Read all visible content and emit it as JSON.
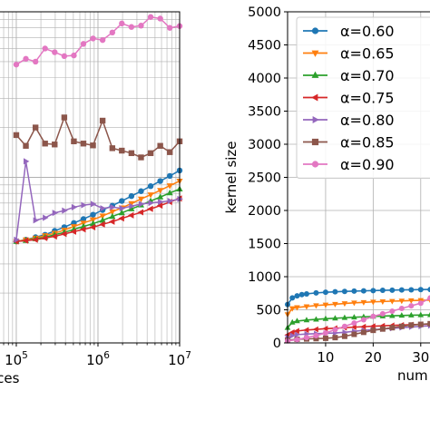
{
  "chart_data": [
    {
      "type": "line",
      "xscale": "log",
      "yscale": "log",
      "xlim": [
        60000,
        10000000
      ],
      "ylim": [
        1,
        100
      ],
      "grid": true,
      "xticks": [
        {
          "value": 100000,
          "base": "10",
          "exp": "5"
        },
        {
          "value": 1000000,
          "base": "10",
          "exp": "6"
        },
        {
          "value": 10000000,
          "base": "10",
          "exp": "7"
        }
      ],
      "xlabel_visible": "ices",
      "x": [
        100000,
        131000,
        172000,
        225000,
        295000,
        387000,
        507000,
        664000,
        870000,
        1140000,
        1500000,
        1960000,
        2570000,
        3370000,
        4420000,
        5790000,
        7590000,
        10000000
      ],
      "series": [
        {
          "color": "#1f77b4",
          "marker": "circle",
          "values": [
            4.1,
            4.2,
            4.35,
            4.5,
            4.75,
            5.0,
            5.3,
            5.6,
            5.95,
            6.35,
            6.75,
            7.2,
            7.7,
            8.25,
            8.85,
            9.5,
            10.2,
            11.0
          ]
        },
        {
          "color": "#ff7f0e",
          "marker": "triangle-down",
          "values": [
            4.1,
            4.2,
            4.3,
            4.45,
            4.6,
            4.8,
            5.05,
            5.3,
            5.55,
            5.85,
            6.2,
            6.55,
            6.95,
            7.4,
            7.85,
            8.35,
            8.9,
            9.5
          ]
        },
        {
          "color": "#2ca02c",
          "marker": "triangle-up",
          "values": [
            4.1,
            4.15,
            4.25,
            4.35,
            4.5,
            4.65,
            4.85,
            5.05,
            5.25,
            5.5,
            5.8,
            6.1,
            6.45,
            6.8,
            7.2,
            7.6,
            8.05,
            8.5
          ]
        },
        {
          "color": "#d62728",
          "marker": "triangle-left",
          "values": [
            4.1,
            4.15,
            4.2,
            4.3,
            4.4,
            4.55,
            4.7,
            4.85,
            5.0,
            5.2,
            5.4,
            5.65,
            5.9,
            6.15,
            6.45,
            6.75,
            7.1,
            7.45
          ]
        },
        {
          "color": "#9467bd",
          "marker": "triangle-right",
          "values": [
            4.2,
            12.5,
            5.5,
            5.7,
            6.1,
            6.3,
            6.6,
            6.8,
            6.9,
            6.5,
            6.6,
            6.5,
            6.7,
            6.9,
            7.0,
            7.1,
            7.2,
            7.4
          ]
        },
        {
          "color": "#8c564b",
          "marker": "square",
          "values": [
            18.0,
            15.5,
            20.0,
            16.0,
            15.8,
            23.0,
            16.5,
            16.0,
            15.6,
            22.0,
            15.0,
            14.5,
            14.0,
            13.2,
            14.0,
            15.5,
            14.2,
            16.5
          ]
        },
        {
          "color": "#e377c2",
          "marker": "circle",
          "values": [
            48.0,
            52.0,
            50.0,
            60.0,
            57.0,
            54.0,
            54.5,
            64.0,
            69.0,
            67.5,
            75.0,
            85.0,
            81.0,
            82.5,
            93.0,
            91.0,
            80.0,
            82.0
          ]
        }
      ]
    },
    {
      "type": "line",
      "xlim": [
        2,
        35
      ],
      "ylim": [
        0,
        5000
      ],
      "grid": true,
      "yticks": [
        0,
        500,
        1000,
        1500,
        2000,
        2500,
        3000,
        3500,
        4000,
        4500,
        5000
      ],
      "xticks": [
        10,
        20,
        30
      ],
      "ylabel": "kernel size",
      "xlabel_visible": "num",
      "legend_position": "upper-left",
      "series": [
        {
          "name": "α=0.60",
          "color": "#1f77b4",
          "marker": "circle",
          "x": [
            2,
            3,
            4,
            5,
            6,
            8,
            10,
            12,
            14,
            16,
            18,
            20,
            22,
            24,
            26,
            28,
            30,
            32,
            35
          ],
          "values": [
            580,
            680,
            710,
            730,
            740,
            755,
            765,
            772,
            778,
            782,
            786,
            790,
            794,
            797,
            800,
            802,
            805,
            807,
            810
          ]
        },
        {
          "name": "α=0.65",
          "color": "#ff7f0e",
          "marker": "triangle-down",
          "x": [
            2,
            3,
            4,
            6,
            8,
            10,
            12,
            14,
            16,
            18,
            20,
            22,
            24,
            26,
            28,
            30,
            32,
            35
          ],
          "values": [
            430,
            520,
            535,
            550,
            565,
            575,
            585,
            595,
            605,
            612,
            620,
            625,
            630,
            635,
            640,
            643,
            646,
            650
          ]
        },
        {
          "name": "α=0.70",
          "color": "#2ca02c",
          "marker": "triangle-up",
          "x": [
            2,
            3,
            4,
            6,
            8,
            10,
            12,
            14,
            16,
            18,
            20,
            22,
            24,
            26,
            28,
            30,
            32,
            35
          ],
          "values": [
            230,
            310,
            330,
            345,
            355,
            365,
            372,
            380,
            388,
            394,
            400,
            405,
            410,
            414,
            418,
            421,
            424,
            428
          ]
        },
        {
          "name": "α=0.75",
          "color": "#d62728",
          "marker": "triangle-left",
          "x": [
            2,
            3,
            4,
            6,
            8,
            10,
            12,
            14,
            16,
            18,
            20,
            22,
            24,
            26,
            28,
            30,
            32,
            35
          ],
          "values": [
            120,
            160,
            180,
            195,
            205,
            215,
            222,
            230,
            238,
            245,
            252,
            258,
            264,
            270,
            275,
            280,
            285,
            290
          ]
        },
        {
          "name": "α=0.80",
          "color": "#9467bd",
          "marker": "triangle-right",
          "x": [
            2,
            3,
            4,
            6,
            8,
            10,
            12,
            14,
            16,
            18,
            20,
            22,
            24,
            26,
            28,
            30,
            32,
            35
          ],
          "values": [
            80,
            110,
            125,
            135,
            140,
            145,
            150,
            160,
            175,
            190,
            200,
            210,
            220,
            230,
            240,
            250,
            260,
            270
          ]
        },
        {
          "name": "α=0.85",
          "color": "#8c564b",
          "marker": "square",
          "x": [
            2,
            4,
            6,
            8,
            10,
            12,
            14,
            16,
            18,
            20,
            22,
            24,
            26,
            28,
            30,
            32,
            35
          ],
          "values": [
            40,
            55,
            60,
            65,
            70,
            80,
            100,
            130,
            160,
            190,
            210,
            230,
            250,
            270,
            280,
            290,
            300
          ]
        },
        {
          "name": "α=0.90",
          "color": "#e377c2",
          "marker": "circle",
          "x": [
            2,
            4,
            6,
            8,
            10,
            12,
            14,
            16,
            18,
            20,
            22,
            24,
            26,
            28,
            30,
            32,
            35
          ],
          "values": [
            30,
            50,
            80,
            110,
            150,
            200,
            250,
            300,
            350,
            400,
            440,
            480,
            520,
            560,
            600,
            680,
            800
          ]
        }
      ]
    }
  ]
}
